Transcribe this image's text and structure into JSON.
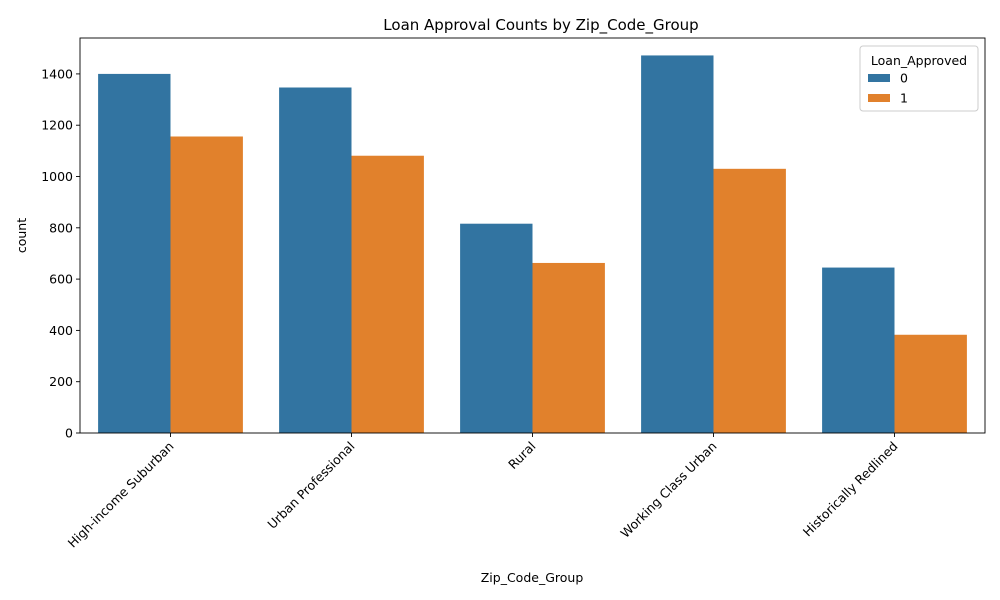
{
  "chart_data": {
    "type": "bar",
    "title": "Loan Approval Counts by Zip_Code_Group",
    "xlabel": "Zip_Code_Group",
    "ylabel": "count",
    "categories": [
      "High-income Suburban",
      "Urban Professional",
      "Rural",
      "Working Class Urban",
      "Historically Redlined"
    ],
    "series": [
      {
        "name": "0",
        "values": [
          1400,
          1347,
          816,
          1472,
          645
        ],
        "color": "#3274a1"
      },
      {
        "name": "1",
        "values": [
          1156,
          1081,
          663,
          1030,
          383
        ],
        "color": "#e1812c"
      }
    ],
    "ylim": [
      0,
      1540
    ],
    "yticks": [
      0,
      200,
      400,
      600,
      800,
      1000,
      1200,
      1400
    ],
    "legend": {
      "title": "Loan_Approved",
      "placement": "top-right"
    },
    "grid": false
  }
}
